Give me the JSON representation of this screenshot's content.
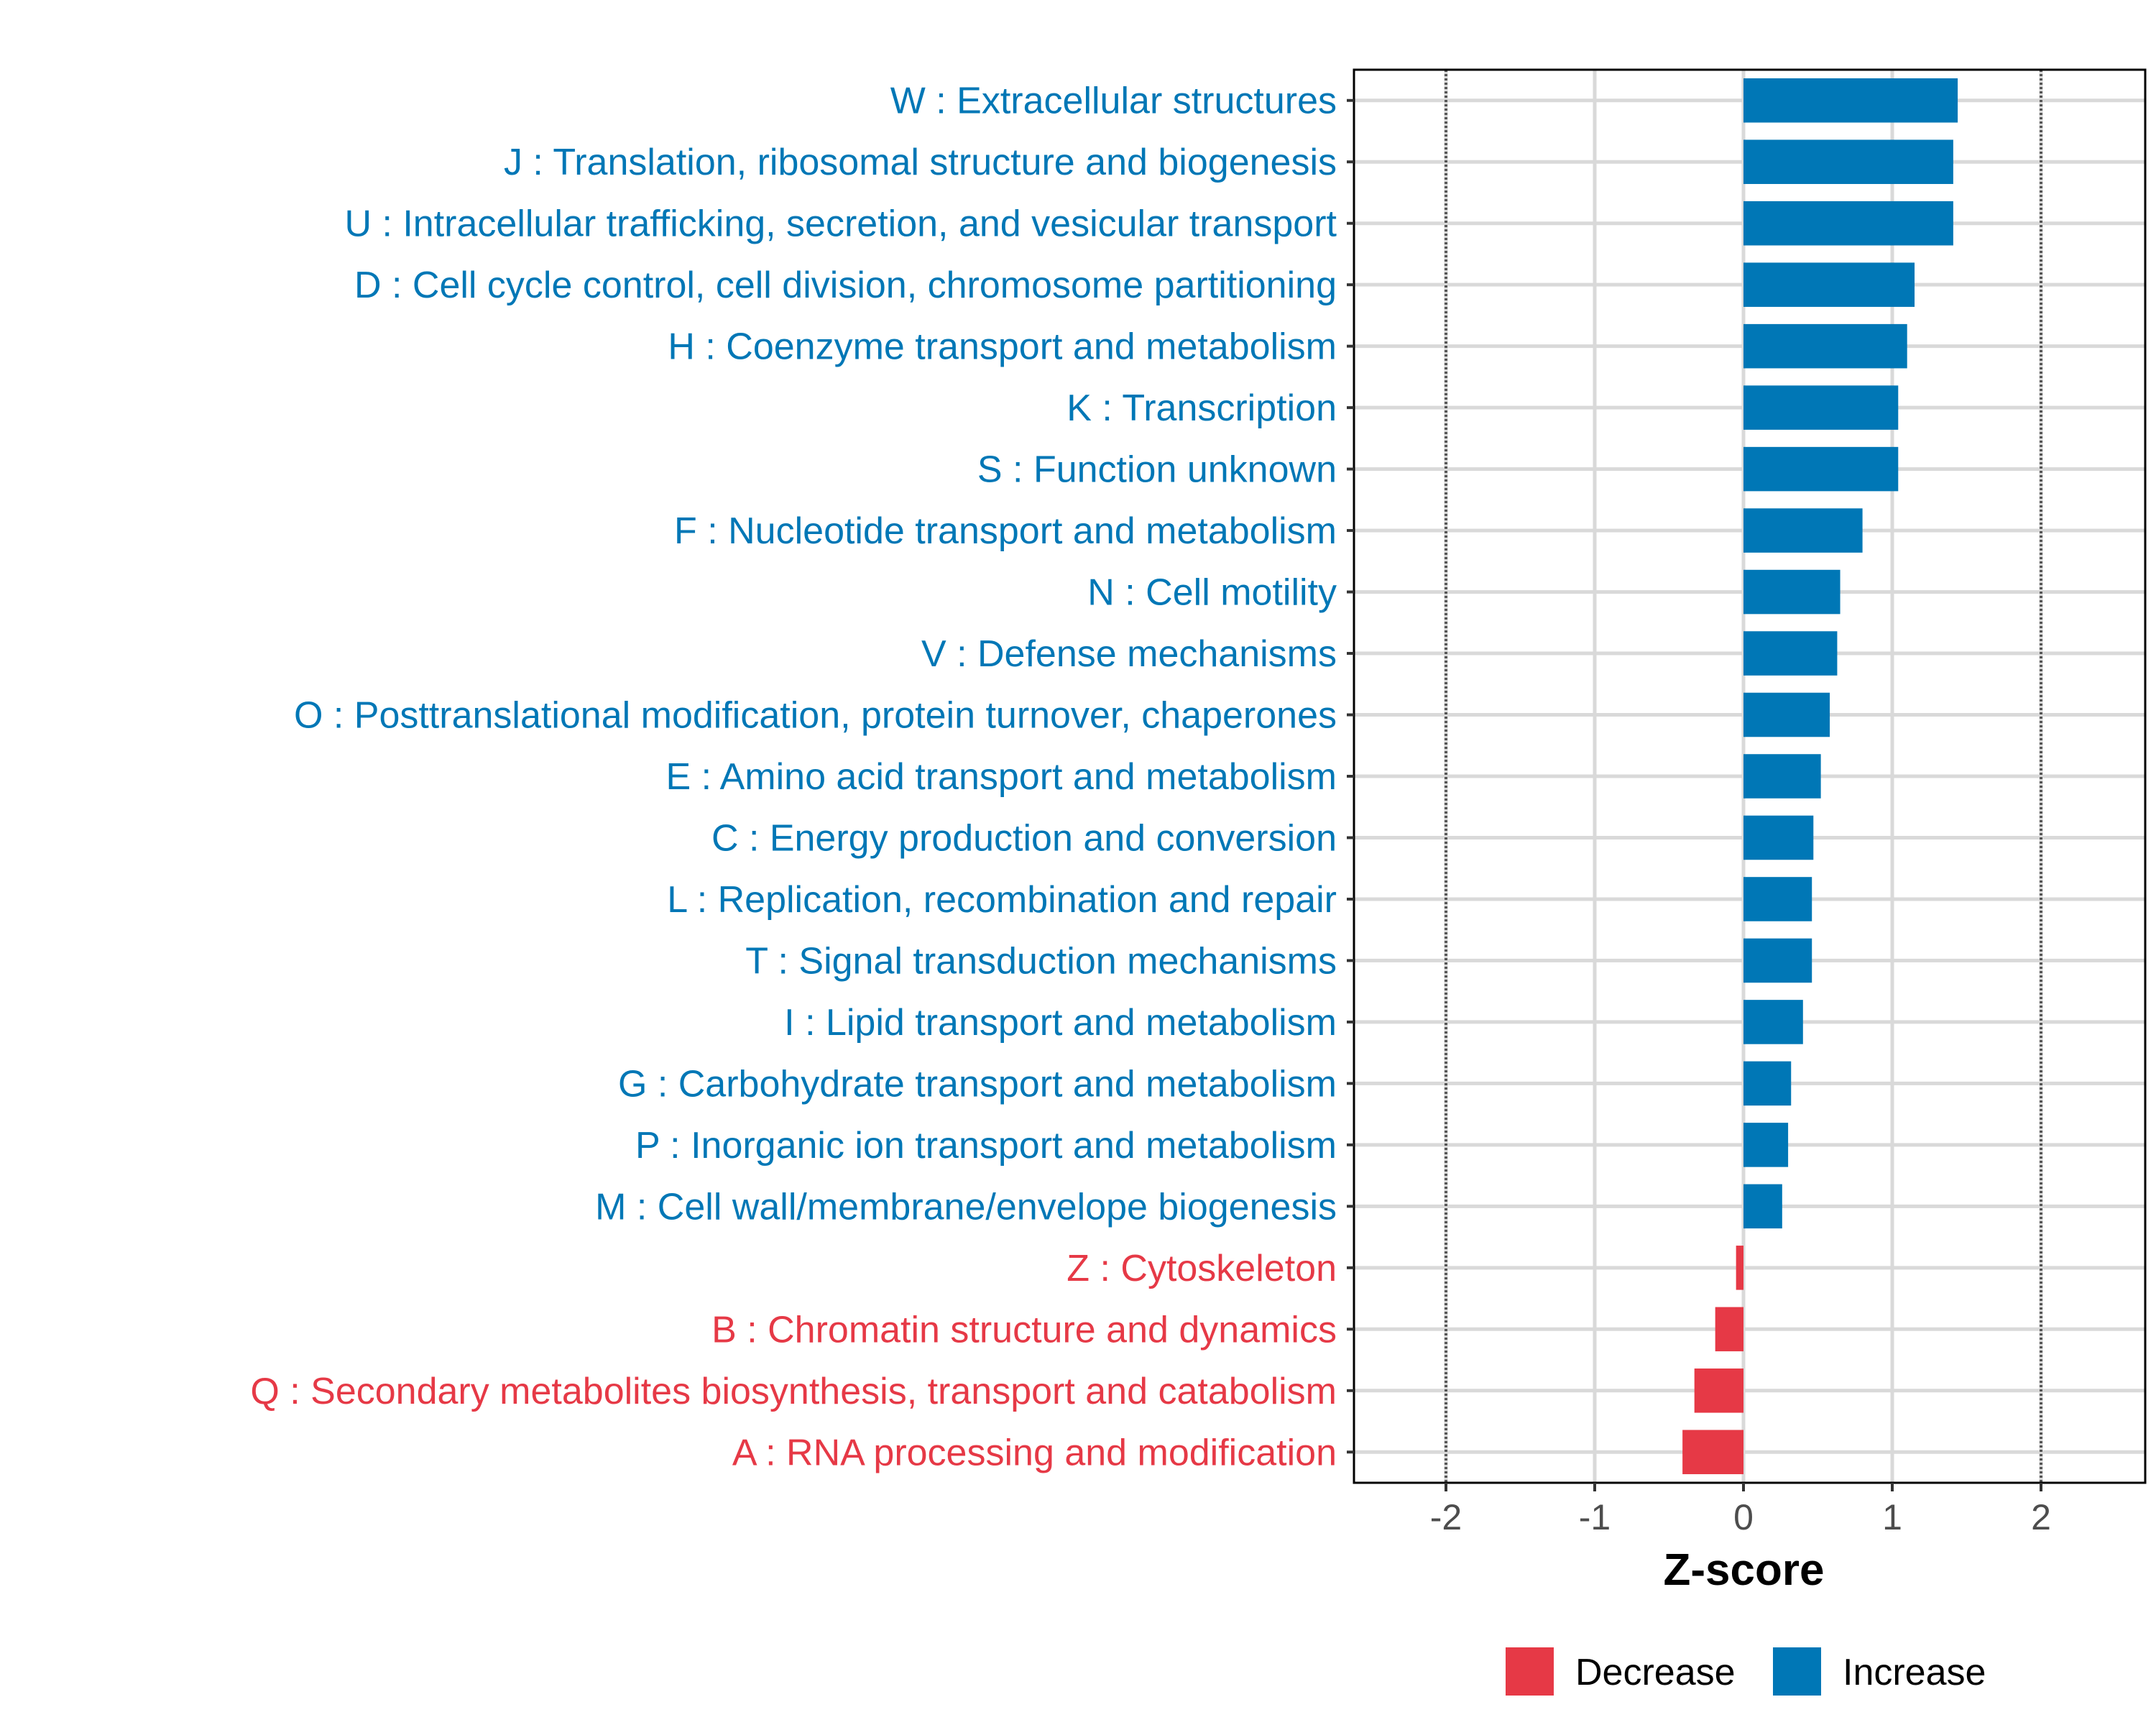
{
  "chart_data": {
    "type": "bar",
    "orientation": "horizontal",
    "title": "",
    "xlabel": "Z-score",
    "ylabel": "",
    "xlim": [
      -2.65,
      2.65
    ],
    "xticks": [
      -2,
      -1,
      0,
      1,
      2
    ],
    "xtick_labels": [
      "-2",
      "-1",
      "0",
      "1",
      "2"
    ],
    "reference_lines": [
      -2,
      2
    ],
    "grid": true,
    "legend_position": "bottom",
    "colors": {
      "Decrease": "#E63946",
      "Increase": "#0077B6"
    },
    "legend": [
      {
        "label": "Decrease",
        "color": "#E63946"
      },
      {
        "label": "Increase",
        "color": "#0077B6"
      }
    ],
    "categories": [
      "W : Extracellular structures",
      "J : Translation, ribosomal structure and biogenesis",
      "U : Intracellular trafficking, secretion, and vesicular transport",
      "D : Cell cycle control, cell division, chromosome partitioning",
      "H : Coenzyme transport and metabolism",
      "K : Transcription",
      "S : Function unknown",
      "F : Nucleotide transport and metabolism",
      "N : Cell motility",
      "V : Defense mechanisms",
      "O : Posttranslational modification, protein turnover, chaperones",
      "E : Amino acid transport and metabolism",
      "C : Energy production and conversion",
      "L : Replication, recombination and repair",
      "T : Signal transduction mechanisms",
      "I : Lipid transport and metabolism",
      "G : Carbohydrate transport and metabolism",
      "P : Inorganic ion transport and metabolism",
      "M : Cell wall/membrane/envelope biogenesis",
      "Z : Cytoskeleton",
      "B : Chromatin structure and dynamics",
      "Q : Secondary metabolites biosynthesis, transport and catabolism",
      "A : RNA processing and modification"
    ],
    "values": [
      1.44,
      1.41,
      1.41,
      1.15,
      1.1,
      1.04,
      1.04,
      0.8,
      0.65,
      0.63,
      0.58,
      0.52,
      0.47,
      0.46,
      0.46,
      0.4,
      0.32,
      0.3,
      0.26,
      -0.05,
      -0.19,
      -0.33,
      -0.41
    ],
    "groups": [
      "Increase",
      "Increase",
      "Increase",
      "Increase",
      "Increase",
      "Increase",
      "Increase",
      "Increase",
      "Increase",
      "Increase",
      "Increase",
      "Increase",
      "Increase",
      "Increase",
      "Increase",
      "Increase",
      "Increase",
      "Increase",
      "Increase",
      "Decrease",
      "Decrease",
      "Decrease",
      "Decrease"
    ]
  }
}
